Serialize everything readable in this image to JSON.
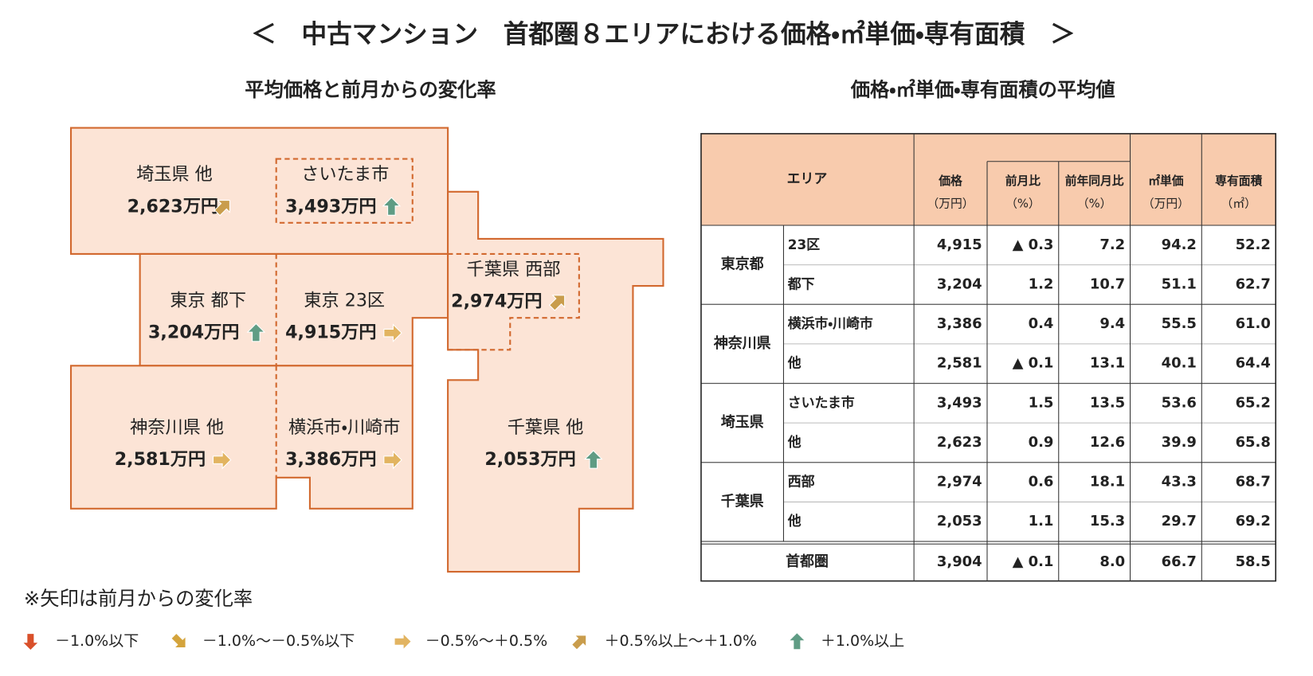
{
  "title": "＜　中古マンション　首都圏８エリアにおける価格・㎡単価・専有面積　＞",
  "map": {
    "title": "平均価格と前月からの変化率",
    "regions": [
      {
        "name": "埼玉県 他",
        "price": "2,623万円",
        "arrow": "up-right"
      },
      {
        "name": "さいたま市",
        "price": "3,493万円",
        "arrow": "up"
      },
      {
        "name": "東京 都下",
        "price": "3,204万円",
        "arrow": "up"
      },
      {
        "name": "東京 23区",
        "price": "4,915万円",
        "arrow": "right"
      },
      {
        "name": "千葉県 西部",
        "price": "2,974万円",
        "arrow": "up-right"
      },
      {
        "name": "神奈川県 他",
        "price": "2,581万円",
        "arrow": "right"
      },
      {
        "name": "横浜市・川崎市",
        "price": "3,386万円",
        "arrow": "right"
      },
      {
        "name": "千葉県 他",
        "price": "2,053万円",
        "arrow": "up"
      }
    ]
  },
  "table": {
    "title": "価格・㎡単価・専有面積の平均値",
    "header": {
      "area": "エリア",
      "columns": [
        {
          "label": "価格",
          "unit": "（万円）"
        },
        {
          "label": "前月比",
          "unit": "（%）"
        },
        {
          "label": "前年同月比",
          "unit": "（%）"
        },
        {
          "label": "㎡単価",
          "unit": "（万円）"
        },
        {
          "label": "専有面積",
          "unit": "（㎡）"
        }
      ]
    },
    "groups": [
      {
        "name": "東京都",
        "rows": [
          {
            "area": "23区",
            "cells": [
              "4,915",
              "▲ 0.3",
              "7.2",
              "94.2",
              "52.2"
            ]
          },
          {
            "area": "都下",
            "cells": [
              "3,204",
              "1.2",
              "10.7",
              "51.1",
              "62.7"
            ]
          }
        ]
      },
      {
        "name": "神奈川県",
        "rows": [
          {
            "area": "横浜市・川崎市",
            "cells": [
              "3,386",
              "0.4",
              "9.4",
              "55.5",
              "61.0"
            ]
          },
          {
            "area": "他",
            "cells": [
              "2,581",
              "▲ 0.1",
              "13.1",
              "40.1",
              "64.4"
            ]
          }
        ]
      },
      {
        "name": "埼玉県",
        "rows": [
          {
            "area": "さいたま市",
            "cells": [
              "3,493",
              "1.5",
              "13.5",
              "53.6",
              "65.2"
            ]
          },
          {
            "area": "他",
            "cells": [
              "2,623",
              "0.9",
              "12.6",
              "39.9",
              "65.8"
            ]
          }
        ]
      },
      {
        "name": "千葉県",
        "rows": [
          {
            "area": "西部",
            "cells": [
              "2,974",
              "0.6",
              "18.1",
              "43.3",
              "68.7"
            ]
          },
          {
            "area": "他",
            "cells": [
              "2,053",
              "1.1",
              "15.3",
              "29.7",
              "69.2"
            ]
          }
        ]
      }
    ],
    "footer": {
      "name": "首都圏",
      "cells": [
        "3,904",
        "▲ 0.1",
        "8.0",
        "66.7",
        "58.5"
      ]
    }
  },
  "legend": {
    "note": "※矢印は前月からの変化率",
    "items": [
      {
        "arrow": "down",
        "label": "－1.0%以下"
      },
      {
        "arrow": "down-right",
        "label": "－1.0%～－0.5%以下"
      },
      {
        "arrow": "right",
        "label": "－0.5%～＋0.5%"
      },
      {
        "arrow": "up-right",
        "label": "＋0.5%以上～＋1.0%"
      },
      {
        "arrow": "up",
        "label": "＋1.0%以上"
      }
    ]
  }
}
